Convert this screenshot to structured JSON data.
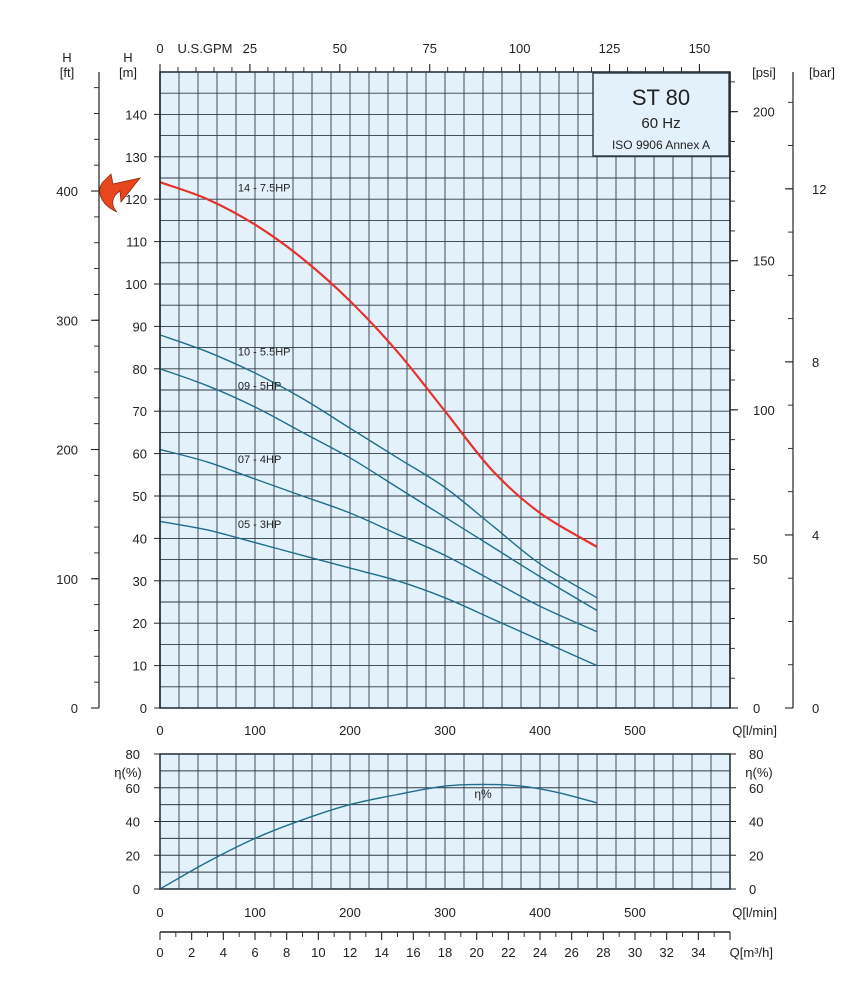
{
  "colors": {
    "grid_fill": "#e3f1fb",
    "grid_line": "#2f3a44",
    "curve": "#1f6d8a",
    "highlight": "#e5322b",
    "arrow": "#e8471d",
    "axis": "#222222"
  },
  "info_box": {
    "title": "ST 80",
    "frequency": "60 Hz",
    "standard": "ISO 9906 Annex A"
  },
  "axis_labels": {
    "h_ft_symbol": "H",
    "h_ft_unit": "[ft]",
    "h_m_symbol": "H",
    "h_m_unit": "[m]",
    "psi_unit": "[psi]",
    "bar_unit": "[bar]",
    "gpm_unit": "U.S.GPM",
    "q_lmin": "Q[l/min]",
    "q_m3h": "Q[m³/h]",
    "eta": "η(%)"
  },
  "highlight_icon": "curved-arrow-icon",
  "chart_data": [
    {
      "type": "line",
      "title": "ST 80",
      "xlabel": "Q[l/min]",
      "ylabel": "H [m]",
      "xlim": [
        0,
        600
      ],
      "ylim": [
        0,
        150
      ],
      "x_ticks": [
        0,
        100,
        200,
        300,
        400,
        500
      ],
      "y_ticks": [
        0,
        10,
        20,
        30,
        40,
        50,
        60,
        70,
        80,
        90,
        100,
        110,
        120,
        130,
        140
      ],
      "grid": true,
      "secondary_axes": {
        "top": {
          "label": "U.S.GPM",
          "range": [
            0,
            158.5
          ],
          "ticks": [
            0,
            25,
            50,
            75,
            100,
            125,
            150
          ]
        },
        "left_outer": {
          "label": "H [ft]",
          "range": [
            0,
            492.1
          ],
          "ticks": [
            0,
            100,
            200,
            300,
            400
          ]
        },
        "right_psi": {
          "label": "[psi]",
          "range": [
            0,
            213.3
          ],
          "ticks": [
            0,
            50,
            100,
            150,
            200
          ]
        },
        "right_bar": {
          "label": "[bar]",
          "range": [
            0,
            14.7
          ],
          "ticks": [
            0,
            4,
            8,
            12
          ]
        }
      },
      "series": [
        {
          "name": "14 - 7.5HP",
          "highlight": true,
          "x": [
            0,
            50,
            100,
            150,
            200,
            250,
            300,
            350,
            400,
            460
          ],
          "y": [
            124,
            120,
            114,
            106,
            96,
            84,
            70,
            56,
            46,
            38
          ]
        },
        {
          "name": "10 - 5.5HP",
          "x": [
            0,
            50,
            100,
            150,
            200,
            250,
            300,
            350,
            400,
            460
          ],
          "y": [
            88,
            84,
            79,
            73,
            66,
            59,
            52,
            43,
            34,
            26
          ]
        },
        {
          "name": "09 - 5HP",
          "x": [
            0,
            50,
            100,
            150,
            200,
            250,
            300,
            350,
            400,
            460
          ],
          "y": [
            80,
            76,
            71,
            65,
            59,
            52,
            45,
            38,
            31,
            23
          ]
        },
        {
          "name": "07 - 4HP",
          "x": [
            0,
            50,
            100,
            150,
            200,
            250,
            300,
            350,
            400,
            460
          ],
          "y": [
            61,
            58,
            54,
            50,
            46,
            41,
            36,
            30,
            24,
            18
          ]
        },
        {
          "name": "05 - 3HP",
          "x": [
            0,
            50,
            100,
            150,
            200,
            250,
            300,
            350,
            400,
            460
          ],
          "y": [
            44,
            42,
            39,
            36,
            33,
            30,
            26,
            21,
            16,
            10
          ]
        }
      ]
    },
    {
      "type": "line",
      "xlabel": "Q[l/min]",
      "ylabel": "η(%)",
      "xlim": [
        0,
        600
      ],
      "ylim": [
        0,
        80
      ],
      "x_ticks": [
        0,
        100,
        200,
        300,
        400,
        500
      ],
      "y_ticks": [
        0,
        20,
        40,
        60,
        80
      ],
      "grid": true,
      "series": [
        {
          "name": "η%",
          "x": [
            0,
            50,
            100,
            150,
            200,
            250,
            300,
            340,
            380,
            420,
            460
          ],
          "y": [
            0,
            16,
            30,
            41,
            50,
            56,
            61,
            62,
            61,
            57,
            51
          ]
        }
      ]
    },
    {
      "type": "axis",
      "xlabel": "Q[m³/h]",
      "xlim": [
        0,
        36
      ],
      "x_ticks": [
        0,
        2,
        4,
        6,
        8,
        10,
        12,
        14,
        16,
        18,
        20,
        22,
        24,
        26,
        28,
        30,
        32,
        34
      ]
    }
  ]
}
